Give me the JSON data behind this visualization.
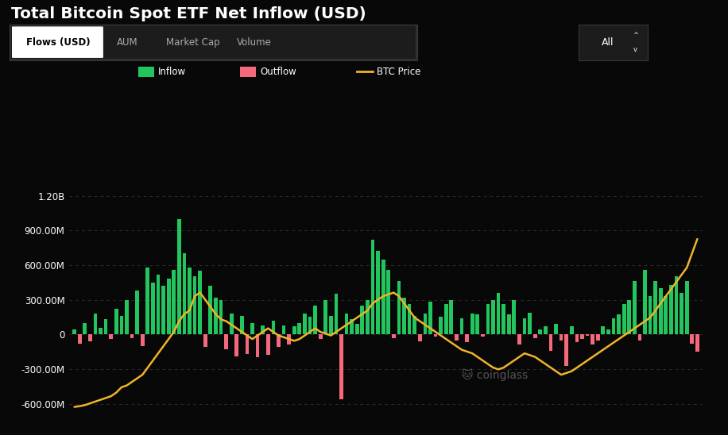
{
  "title": "Total Bitcoin Spot ETF Net Inflow (USD)",
  "background_color": "#080808",
  "text_color": "#ffffff",
  "grid_color": "#2a2a2a",
  "inflow_color": "#22c55e",
  "outflow_color": "#f4697b",
  "btc_price_color": "#f0b429",
  "yticks_labels": [
    "1.20B",
    "900.00M",
    "600.00M",
    "300.00M",
    "0",
    "-300.00M",
    "-600.00M"
  ],
  "yticks_values": [
    1200000000,
    900000000,
    600000000,
    300000000,
    0,
    -300000000,
    -600000000
  ],
  "ylim": [
    -720000000,
    1350000000
  ],
  "bar_values": [
    40000000,
    -80000000,
    100000000,
    -60000000,
    180000000,
    60000000,
    130000000,
    -40000000,
    220000000,
    160000000,
    300000000,
    -30000000,
    380000000,
    -100000000,
    580000000,
    450000000,
    520000000,
    420000000,
    480000000,
    560000000,
    1000000000,
    700000000,
    580000000,
    500000000,
    550000000,
    -110000000,
    420000000,
    320000000,
    300000000,
    -130000000,
    180000000,
    -190000000,
    160000000,
    -170000000,
    100000000,
    -200000000,
    80000000,
    -180000000,
    120000000,
    -110000000,
    80000000,
    -90000000,
    70000000,
    100000000,
    180000000,
    150000000,
    250000000,
    -40000000,
    300000000,
    160000000,
    350000000,
    -560000000,
    180000000,
    130000000,
    90000000,
    250000000,
    300000000,
    820000000,
    720000000,
    650000000,
    560000000,
    -30000000,
    460000000,
    320000000,
    260000000,
    160000000,
    -60000000,
    180000000,
    280000000,
    -20000000,
    150000000,
    260000000,
    300000000,
    -50000000,
    140000000,
    -70000000,
    180000000,
    170000000,
    -20000000,
    260000000,
    300000000,
    360000000,
    260000000,
    170000000,
    300000000,
    -90000000,
    140000000,
    190000000,
    -30000000,
    40000000,
    70000000,
    -140000000,
    90000000,
    -50000000,
    -270000000,
    70000000,
    -70000000,
    -40000000,
    -10000000,
    -90000000,
    -50000000,
    70000000,
    40000000,
    140000000,
    170000000,
    260000000,
    300000000,
    460000000,
    -50000000,
    560000000,
    330000000,
    460000000,
    400000000,
    330000000,
    430000000,
    500000000,
    360000000,
    460000000,
    -80000000,
    -150000000
  ],
  "btc_price": [
    41000,
    41200,
    41500,
    42000,
    42500,
    43000,
    43500,
    44000,
    45000,
    46500,
    47000,
    48000,
    49000,
    50000,
    52000,
    54000,
    56000,
    58000,
    60000,
    62000,
    65000,
    67000,
    68000,
    72000,
    73000,
    71000,
    69000,
    67000,
    65500,
    65000,
    64000,
    63000,
    62000,
    61000,
    60000,
    61000,
    62000,
    63000,
    62000,
    61000,
    60500,
    60000,
    59500,
    60000,
    61000,
    62000,
    63000,
    62000,
    61500,
    61000,
    62000,
    63000,
    64000,
    65000,
    66000,
    67000,
    68000,
    70000,
    71000,
    72000,
    72500,
    73000,
    72000,
    70000,
    68000,
    66000,
    65000,
    64000,
    63000,
    62000,
    61000,
    60000,
    59000,
    58000,
    57000,
    56500,
    56000,
    55000,
    54000,
    53000,
    52000,
    51500,
    52000,
    53000,
    54000,
    55000,
    56000,
    55500,
    55000,
    54000,
    53000,
    52000,
    51000,
    50000,
    50500,
    51000,
    52000,
    53000,
    54000,
    55000,
    56000,
    57000,
    58000,
    59000,
    60000,
    61000,
    62000,
    63000,
    64000,
    65000,
    66000,
    68000,
    70000,
    72000,
    74000,
    76000,
    78000,
    80000,
    84000,
    88000
  ],
  "btc_price_scale_min": 38000,
  "btc_price_scale_max": 105000,
  "tab_labels": [
    "Flows (USD)",
    "AUM",
    "Market Cap",
    "Volume"
  ],
  "dropdown_label": "All",
  "legend_labels": [
    "Inflow",
    "Outflow",
    "BTC Price"
  ]
}
